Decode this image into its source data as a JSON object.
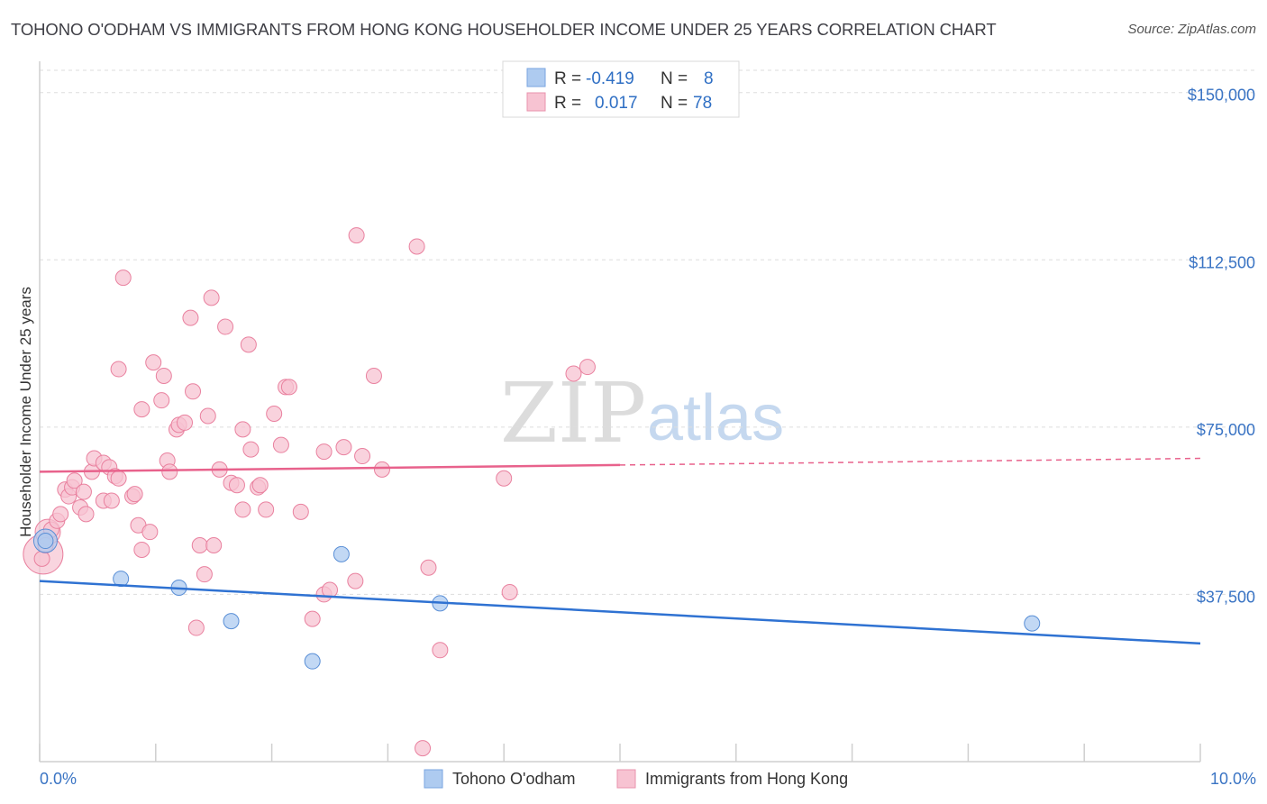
{
  "title": "TOHONO O'ODHAM VS IMMIGRANTS FROM HONG KONG HOUSEHOLDER INCOME UNDER 25 YEARS CORRELATION CHART",
  "source": "Source: ZipAtlas.com",
  "watermark": {
    "zip": "ZIP",
    "atlas": "atlas"
  },
  "legend_top": {
    "rows": [
      {
        "r_label": "R =",
        "r_value": "-0.419",
        "n_label": "N =",
        "n_value": "8"
      },
      {
        "r_label": "R =",
        "r_value": "0.017",
        "n_label": "N =",
        "n_value": "78"
      }
    ]
  },
  "legend_bottom": {
    "items": [
      {
        "label": "Tohono O'odham"
      },
      {
        "label": "Immigrants from Hong Kong"
      }
    ]
  },
  "colors": {
    "blue_fill": "#aecbf0",
    "blue_stroke": "#5a8fd6",
    "blue_line": "#2f72d2",
    "pink_fill": "#f7c3d2",
    "pink_stroke": "#e9819f",
    "pink_line": "#e8628c",
    "axis_text": "#3a74c4",
    "grid": "#dddddd"
  },
  "chart_data": {
    "type": "scatter",
    "title": "TOHONO O'ODHAM VS IMMIGRANTS FROM HONG KONG HOUSEHOLDER INCOME UNDER 25 YEARS CORRELATION CHART",
    "xlabel": "",
    "ylabel": "Householder Income Under 25 years",
    "xlim": [
      0,
      10
    ],
    "ylim": [
      0,
      155000
    ],
    "x_tick_labels": [
      "0.0%",
      "10.0%"
    ],
    "y_ticks": [
      37500,
      75000,
      112500,
      150000
    ],
    "y_tick_labels": [
      "$37,500",
      "$75,000",
      "$112,500",
      "$150,000"
    ],
    "grid": "horizontal dashed",
    "legend_position": "top-center",
    "series": [
      {
        "name": "Tohono O'odham",
        "points": [
          [
            0.05,
            49500
          ],
          [
            0.7,
            41000
          ],
          [
            1.2,
            39000
          ],
          [
            1.65,
            31500
          ],
          [
            2.35,
            22500
          ],
          [
            2.6,
            46500
          ],
          [
            3.45,
            35500
          ],
          [
            8.55,
            31000
          ]
        ],
        "trend": {
          "x0": 0,
          "y0": 40500,
          "x1": 10,
          "y1": 26500,
          "dashed_from": null
        }
      },
      {
        "name": "Immigrants from Hong Kong",
        "points": [
          [
            0.02,
            45500
          ],
          [
            0.05,
            48500
          ],
          [
            0.1,
            52000
          ],
          [
            0.15,
            54000
          ],
          [
            0.18,
            55500
          ],
          [
            0.22,
            61000
          ],
          [
            0.25,
            59500
          ],
          [
            0.28,
            61500
          ],
          [
            0.3,
            63000
          ],
          [
            0.35,
            57000
          ],
          [
            0.38,
            60500
          ],
          [
            0.4,
            55500
          ],
          [
            0.45,
            65000
          ],
          [
            0.47,
            68000
          ],
          [
            0.55,
            58500
          ],
          [
            0.55,
            67000
          ],
          [
            0.6,
            66000
          ],
          [
            0.62,
            58500
          ],
          [
            0.65,
            64000
          ],
          [
            0.68,
            63500
          ],
          [
            0.72,
            108500
          ],
          [
            0.8,
            59500
          ],
          [
            0.82,
            60000
          ],
          [
            0.85,
            53000
          ],
          [
            0.88,
            79000
          ],
          [
            0.88,
            47500
          ],
          [
            0.68,
            88000
          ],
          [
            0.95,
            51500
          ],
          [
            0.98,
            89500
          ],
          [
            1.05,
            81000
          ],
          [
            1.07,
            86500
          ],
          [
            1.1,
            67500
          ],
          [
            1.12,
            65000
          ],
          [
            1.18,
            74500
          ],
          [
            1.2,
            75500
          ],
          [
            1.25,
            76000
          ],
          [
            1.3,
            99500
          ],
          [
            1.32,
            83000
          ],
          [
            1.35,
            30000
          ],
          [
            1.38,
            48500
          ],
          [
            1.42,
            42000
          ],
          [
            1.45,
            77500
          ],
          [
            1.48,
            104000
          ],
          [
            1.5,
            48500
          ],
          [
            1.55,
            65500
          ],
          [
            1.6,
            97500
          ],
          [
            1.65,
            62500
          ],
          [
            1.7,
            62000
          ],
          [
            1.75,
            74500
          ],
          [
            1.75,
            56500
          ],
          [
            1.8,
            93500
          ],
          [
            1.82,
            70000
          ],
          [
            1.88,
            61500
          ],
          [
            1.9,
            62000
          ],
          [
            1.95,
            56500
          ],
          [
            2.02,
            78000
          ],
          [
            2.08,
            71000
          ],
          [
            2.12,
            84000
          ],
          [
            2.15,
            84000
          ],
          [
            2.25,
            56000
          ],
          [
            2.35,
            32000
          ],
          [
            2.45,
            69500
          ],
          [
            2.45,
            37500
          ],
          [
            2.5,
            38500
          ],
          [
            2.62,
            70500
          ],
          [
            2.72,
            40500
          ],
          [
            2.73,
            118000
          ],
          [
            2.78,
            68500
          ],
          [
            2.88,
            86500
          ],
          [
            2.95,
            65500
          ],
          [
            3.25,
            115500
          ],
          [
            3.35,
            43500
          ],
          [
            3.3,
            3000
          ],
          [
            3.45,
            25000
          ],
          [
            4.0,
            63500
          ],
          [
            4.05,
            38000
          ],
          [
            4.6,
            87000
          ],
          [
            4.72,
            88500
          ]
        ],
        "trend": {
          "x0": 0,
          "y0": 65000,
          "x1": 10,
          "y1": 68000,
          "dashed_from": 5.0
        }
      }
    ]
  }
}
